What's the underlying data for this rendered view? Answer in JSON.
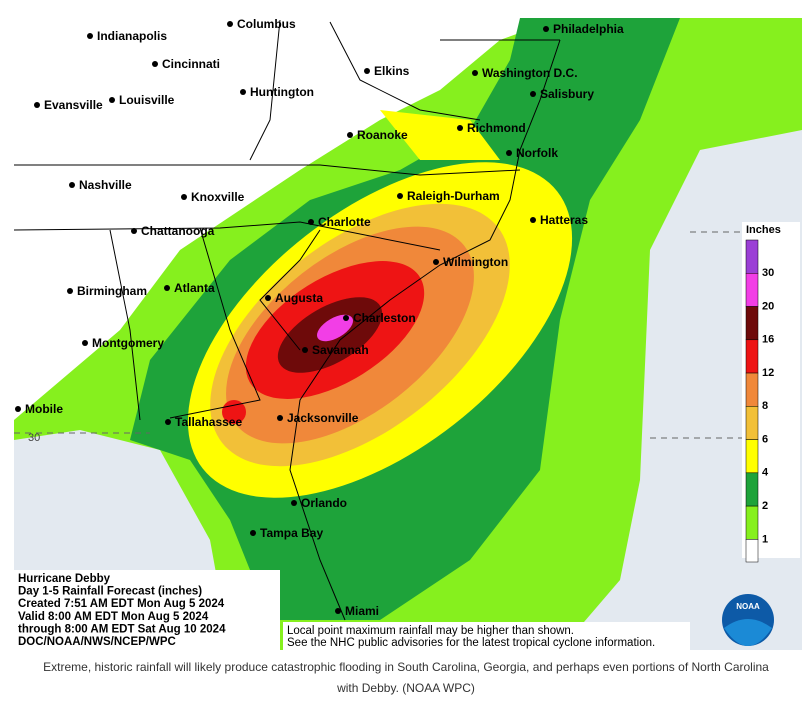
{
  "map": {
    "cities": [
      "Columbus",
      "Indianapolis",
      "Cincinnati",
      "Louisville",
      "Evansville",
      "Huntington",
      "Elkins",
      "Philadelphia",
      "Washington D.C.",
      "Salisbury",
      "Roanoke",
      "Richmond",
      "Norfolk",
      "Nashville",
      "Knoxville",
      "Raleigh-Durham",
      "Hatteras",
      "Charlotte",
      "Chattanooga",
      "Wilmington",
      "Birmingham",
      "Atlanta",
      "Augusta",
      "Charleston",
      "Montgomery",
      "Savannah",
      "Mobile",
      "Tallahassee",
      "Jacksonville",
      "Orlando",
      "Tampa Bay",
      "Miami"
    ],
    "latitude_label": "30",
    "legend": {
      "title": "Inches",
      "items": [
        {
          "label": "30",
          "color": "#9b3fd6"
        },
        {
          "label": "20",
          "color": "#f23ee6"
        },
        {
          "label": "16",
          "color": "#6e0a0a"
        },
        {
          "label": "12",
          "color": "#ee1414"
        },
        {
          "label": "8",
          "color": "#f0883a"
        },
        {
          "label": "6",
          "color": "#f2c038"
        },
        {
          "label": "4",
          "color": "#ffff00"
        },
        {
          "label": "2",
          "color": "#1ea33a"
        },
        {
          "label": "1",
          "color": "#86f01e"
        }
      ]
    },
    "info_box": [
      "Hurricane Debby",
      "Day 1-5 Rainfall Forecast (inches)",
      "Created 7:51 AM EDT Mon Aug 5 2024",
      "Valid 8:00 AM EDT Mon Aug 5 2024",
      "through 8:00 AM EDT Sat Aug 10 2024",
      "DOC/NOAA/NWS/NCEP/WPC"
    ],
    "note": [
      "Local point maximum rainfall may be higher than shown.",
      "See the NHC public advisories for the latest tropical cyclone information."
    ],
    "logo": "NOAA"
  },
  "caption": [
    "Extreme, historic rainfall will likely produce catastrophic flooding in South Carolina, Georgia, and perhaps even portions of North Carolina",
    "with Debby. (NOAA WPC)"
  ]
}
